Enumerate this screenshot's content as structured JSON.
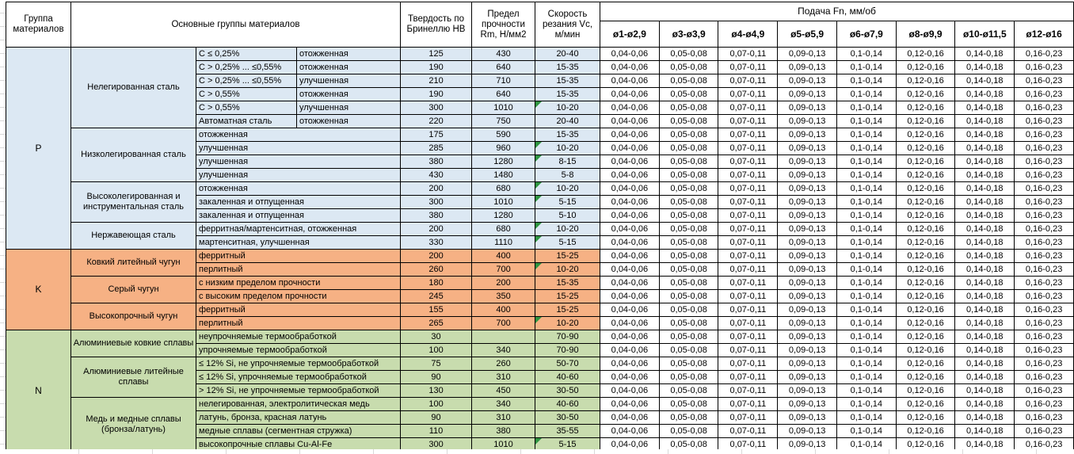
{
  "header": {
    "col_group": "Группа материалов",
    "col_material": "Основные группы материалов",
    "col_hb": "Твердость по Бринеллю HB",
    "col_rm": "Предел прочности Rm, Н/мм2",
    "col_vc": "Скорость резания Vc, м/мин",
    "feed_title": "Подача Fn, мм/об",
    "feed_cols": [
      "ø1-ø2,9",
      "ø3-ø3,9",
      "ø4-ø4,9",
      "ø5-ø5,9",
      "ø6-ø7,9",
      "ø8-ø9,9",
      "ø10-ø11,5",
      "ø12-ø16"
    ]
  },
  "feed_values": [
    "0,04-0,06",
    "0,05-0,08",
    "0,07-0,11",
    "0,09-0,13",
    "0,1-0,14",
    "0,12-0,16",
    "0,14-0,18",
    "0,16-0,23"
  ],
  "colors": {
    "p_bg": "#dce8f3",
    "k_bg": "#f6b184",
    "n_bg": "#c8dcae",
    "triangle": "#2e9440",
    "border": "#000000",
    "gridline": "#d9d9d9"
  },
  "groups": [
    {
      "code": "P",
      "color": "p_bg",
      "blocks": [
        {
          "name": "Нелегированная сталь",
          "rows": [
            {
              "sub1": "C ≤ 0,25%",
              "sub2": "отожженная",
              "hb": "125",
              "rm": "430",
              "vc": "20-40",
              "tri": false
            },
            {
              "sub1": "C > 0,25% ... ≤0,55%",
              "sub2": "отожженная",
              "hb": "190",
              "rm": "640",
              "vc": "15-35",
              "tri": false
            },
            {
              "sub1": "C > 0,25% ... ≤0,55%",
              "sub2": "улучшенная",
              "hb": "210",
              "rm": "710",
              "vc": "15-35",
              "tri": false
            },
            {
              "sub1": "C > 0,55%",
              "sub2": "отожженная",
              "hb": "190",
              "rm": "640",
              "vc": "15-35",
              "tri": false
            },
            {
              "sub1": "C > 0,55%",
              "sub2": "улучшенная",
              "hb": "300",
              "rm": "1010",
              "vc": "10-20",
              "tri": true
            },
            {
              "sub1": "Автоматная сталь",
              "sub2": "отожженная",
              "hb": "220",
              "rm": "750",
              "vc": "20-40",
              "tri": false
            }
          ]
        },
        {
          "name": "Низколегированная сталь",
          "rows": [
            {
              "sub": "отожженная",
              "hb": "175",
              "rm": "590",
              "vc": "15-35",
              "tri": false
            },
            {
              "sub": "улучшенная",
              "hb": "285",
              "rm": "960",
              "vc": "10-20",
              "tri": true
            },
            {
              "sub": "улучшенная",
              "hb": "380",
              "rm": "1280",
              "vc": "8-15",
              "tri": true
            },
            {
              "sub": "улучшенная",
              "hb": "430",
              "rm": "1480",
              "vc": "5-8",
              "tri": false
            }
          ]
        },
        {
          "name": "Высоколегированная и инструментальная сталь",
          "rows": [
            {
              "sub": "отожженная",
              "hb": "200",
              "rm": "680",
              "vc": "10-20",
              "tri": true
            },
            {
              "sub": "закаленная и отпущенная",
              "hb": "300",
              "rm": "1010",
              "vc": "5-15",
              "tri": true
            },
            {
              "sub": "закаленная и отпущенная",
              "hb": "380",
              "rm": "1280",
              "vc": "5-10",
              "tri": false
            }
          ]
        },
        {
          "name": "Нержавеющая сталь",
          "rows": [
            {
              "sub": "ферритная/мартенситная, отожженная",
              "hb": "200",
              "rm": "680",
              "vc": "10-20",
              "tri": true
            },
            {
              "sub": "мартенситная, улучшенная",
              "hb": "330",
              "rm": "1110",
              "vc": "5-15",
              "tri": true
            }
          ]
        }
      ]
    },
    {
      "code": "K",
      "color": "k_bg",
      "blocks": [
        {
          "name": "Ковкий литейный чугун",
          "rows": [
            {
              "sub": "ферритный",
              "hb": "200",
              "rm": "400",
              "vc": "15-25",
              "tri": false
            },
            {
              "sub": "перлитный",
              "hb": "260",
              "rm": "700",
              "vc": "10-20",
              "tri": true
            }
          ]
        },
        {
          "name": "Серый чугун",
          "rows": [
            {
              "sub": "с низким пределом прочности",
              "hb": "180",
              "rm": "200",
              "vc": "15-35",
              "tri": false
            },
            {
              "sub": "с высоким пределом прочности",
              "hb": "245",
              "rm": "350",
              "vc": "15-25",
              "tri": false
            }
          ]
        },
        {
          "name": "Высокопрочный чугун",
          "rows": [
            {
              "sub": "ферритный",
              "hb": "155",
              "rm": "400",
              "vc": "15-25",
              "tri": false
            },
            {
              "sub": "перлитный",
              "hb": "265",
              "rm": "700",
              "vc": "10-20",
              "tri": true
            }
          ]
        }
      ]
    },
    {
      "code": "N",
      "color": "n_bg",
      "blocks": [
        {
          "name": "Алюминиевые ковкие сплавы",
          "rows": [
            {
              "sub": "неупрочняемые термообработкой",
              "hb": "30",
              "rm": "",
              "vc": "70-90",
              "tri": false
            },
            {
              "sub": "упрочняемые термообработкой",
              "hb": "100",
              "rm": "340",
              "vc": "70-90",
              "tri": false
            }
          ]
        },
        {
          "name": "Алюминиевые литейные сплавы",
          "rows": [
            {
              "sub": "≤ 12% Si, не упрочняемые термообработкой",
              "hb": "75",
              "rm": "260",
              "vc": "50-70",
              "tri": false
            },
            {
              "sub": "≤ 12% Si, упрочняемые термообработкой",
              "hb": "90",
              "rm": "310",
              "vc": "40-60",
              "tri": false
            },
            {
              "sub": "> 12% Si, не упрочняемые термообработкой",
              "hb": "130",
              "rm": "450",
              "vc": "30-50",
              "tri": false
            }
          ]
        },
        {
          "name": "Медь и медные сплавы (бронза/латунь)",
          "rows": [
            {
              "sub": "нелегированная, электролитическая медь",
              "hb": "100",
              "rm": "340",
              "vc": "40-60",
              "tri": false
            },
            {
              "sub": "латунь, бронза, красная латунь",
              "hb": "90",
              "rm": "310",
              "vc": "30-50",
              "tri": false
            },
            {
              "sub": "медные сплавы (сегментная стружка)",
              "hb": "110",
              "rm": "380",
              "vc": "35-55",
              "tri": false
            },
            {
              "sub": "высокопрочные сплавы Cu-Al-Fe",
              "hb": "300",
              "rm": "1010",
              "vc": "5-15",
              "tri": true
            }
          ]
        }
      ]
    }
  ]
}
